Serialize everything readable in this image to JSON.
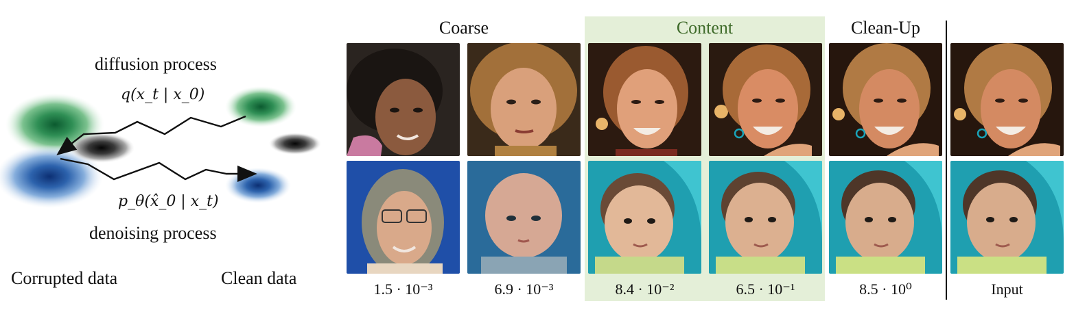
{
  "diagram": {
    "forward_label": "diffusion process",
    "forward_formula": "q(x_t | x_0)",
    "reverse_formula": "p_θ(x̂_0 | x_t)",
    "reverse_label": "denoising process",
    "corrupted_label": "Corrupted data",
    "clean_label": "Clean data",
    "colors": {
      "green": "#2e8b57",
      "blue": "#2f6db5",
      "gray": "#3a3a3a",
      "arrow": "#111111"
    }
  },
  "grid": {
    "groups": [
      {
        "label": "Coarse"
      },
      {
        "label": "Content",
        "highlight_color": "#e4efd8",
        "text_color": "#3f6b2a"
      },
      {
        "label": "Clean-Up"
      }
    ],
    "columns": [
      {
        "value": "1.5 · 10⁻³"
      },
      {
        "value": "6.9 · 10⁻³"
      },
      {
        "value": "8.4 · 10⁻²"
      },
      {
        "value": "6.5 · 10⁻¹"
      },
      {
        "value": "8.5 · 10⁰"
      },
      {
        "value": "Input"
      }
    ],
    "rows": [
      {
        "name": "woman-portrait-row"
      },
      {
        "name": "baby-portrait-row"
      }
    ]
  }
}
